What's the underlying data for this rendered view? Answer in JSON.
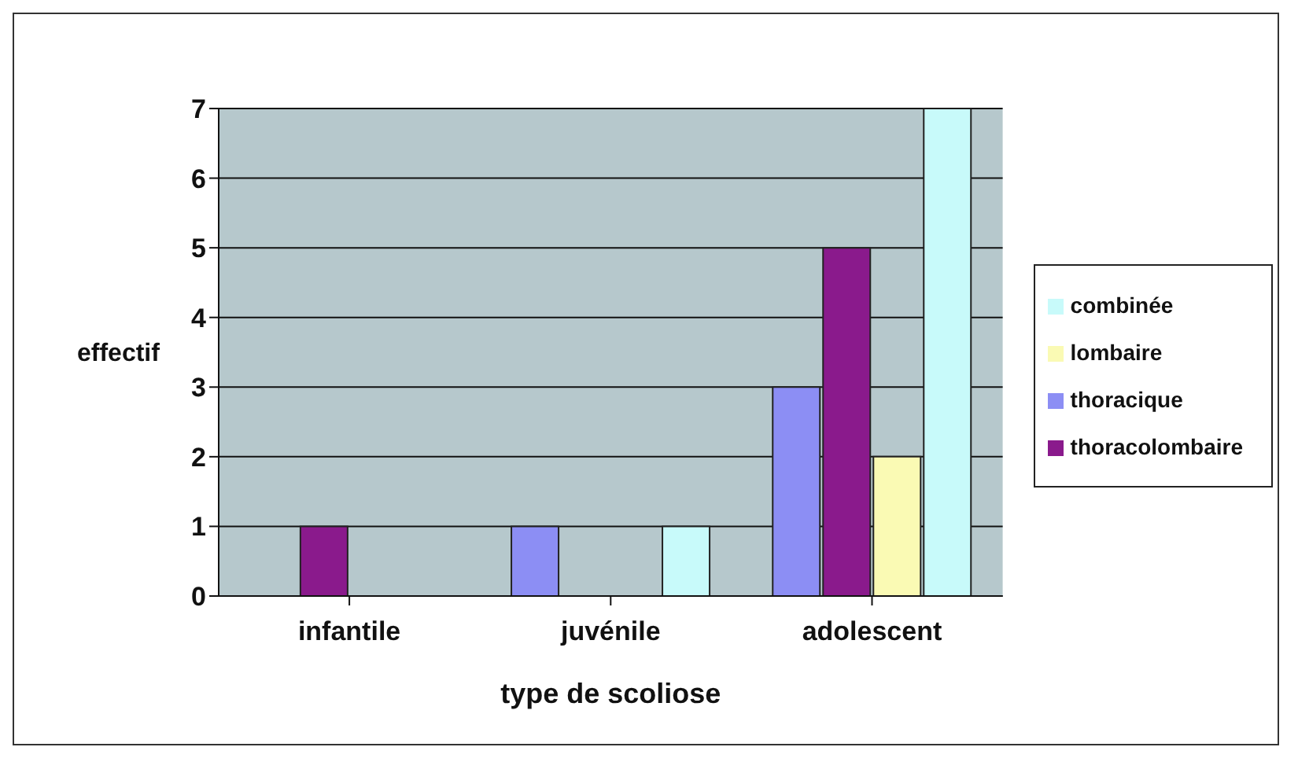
{
  "chart_data": {
    "type": "bar",
    "xlabel": "type de scoliose",
    "ylabel": "effectif",
    "categories": [
      "infantile",
      "juvénile",
      "adolescent"
    ],
    "series": [
      {
        "name": "thoracique",
        "color": "#8c8ef4",
        "values": [
          0,
          1,
          3
        ]
      },
      {
        "name": "thoracolombaire",
        "color": "#8a1a8c",
        "values": [
          1,
          0,
          5
        ]
      },
      {
        "name": "lombaire",
        "color": "#fafab4",
        "values": [
          0,
          0,
          2
        ]
      },
      {
        "name": "combinée",
        "color": "#c8fafa",
        "values": [
          0,
          1,
          7
        ]
      }
    ],
    "ylim": [
      0,
      7
    ],
    "yticks": [
      0,
      1,
      2,
      3,
      4,
      5,
      6,
      7
    ],
    "grid": "y",
    "legend": "right"
  }
}
